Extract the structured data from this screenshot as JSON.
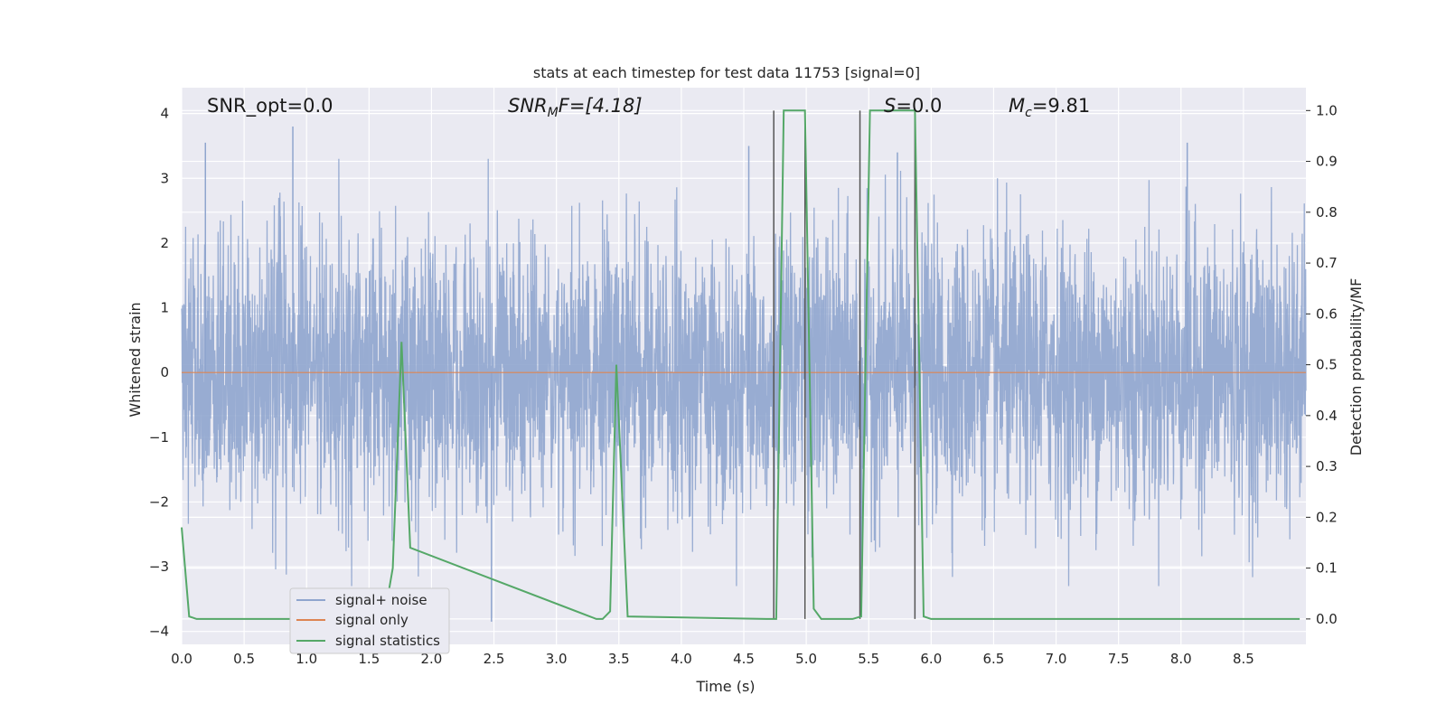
{
  "chart_data": {
    "type": "line",
    "title": "stats at each timestep for test data 11753 [signal=0]",
    "xlabel": "Time (s)",
    "ylabel": "Whitened strain",
    "ylabel_right": "Detection probability/MF",
    "xlim": [
      0,
      9.0
    ],
    "ylim": [
      -4.2,
      4.4
    ],
    "ylim_right": [
      -0.05,
      1.045
    ],
    "x_ticks": [
      "0.0",
      "0.5",
      "1.0",
      "1.5",
      "2.0",
      "2.5",
      "3.0",
      "3.5",
      "4.0",
      "4.5",
      "5.0",
      "5.5",
      "6.0",
      "6.5",
      "7.0",
      "7.5",
      "8.0",
      "8.5"
    ],
    "y_ticks": [
      "−4",
      "−3",
      "−2",
      "−1",
      "0",
      "1",
      "2",
      "3",
      "4"
    ],
    "y_ticks_right": [
      "0.0",
      "0.1",
      "0.2",
      "0.3",
      "0.4",
      "0.5",
      "0.6",
      "0.7",
      "0.8",
      "0.9",
      "1.0"
    ],
    "grid": true,
    "legend_position": "lower-left",
    "annotations": {
      "snr_opt": "SNR_opt=0.0",
      "snr_mf_main": "SNR",
      "snr_mf_sub": "M",
      "snr_mf_tail": "F=[4.18]",
      "s_main": "S",
      "s_tail": "=0.0",
      "mc_main": "M",
      "mc_sub": "c",
      "mc_tail": "=9.81"
    },
    "series": [
      {
        "name": "signal+ noise",
        "color": "#8fa5ce",
        "description_values": "whitened noisy strain, ~9000 samples, roughly gaussian with std ~1, range about -3.8 to 3.8",
        "peaks": [
          [
            0.19,
            3.55
          ],
          [
            0.89,
            3.8
          ],
          [
            2.48,
            -3.85
          ],
          [
            4.54,
            3.5
          ],
          [
            5.44,
            -3.65
          ],
          [
            5.73,
            3.4
          ],
          [
            8.05,
            3.55
          ]
        ]
      },
      {
        "name": "signal only",
        "color": "#dd8452",
        "values": "flat at 0"
      },
      {
        "name": "signal statistics",
        "color": "#55a868",
        "axis": "right",
        "x": [
          0.0,
          0.06,
          0.12,
          1.62,
          1.69,
          1.76,
          1.83,
          3.32,
          3.37,
          3.43,
          3.48,
          3.57,
          4.68,
          4.76,
          4.82,
          4.99,
          5.06,
          5.12,
          5.37,
          5.44,
          5.51,
          5.87,
          5.94,
          6.0,
          8.95
        ],
        "values": [
          0.18,
          0.005,
          0.0,
          0.0,
          0.1,
          0.545,
          0.14,
          0.0,
          0.0,
          0.015,
          0.5,
          0.005,
          0.0,
          0.0,
          1.0,
          1.0,
          0.02,
          0.0,
          0.0,
          0.005,
          1.0,
          1.0,
          0.005,
          0.0,
          0.0
        ]
      }
    ],
    "vlines": [
      4.74,
      4.99,
      5.43,
      5.87
    ],
    "vline_range_right": [
      0.0,
      1.0
    ],
    "vline_color": "#555555"
  }
}
